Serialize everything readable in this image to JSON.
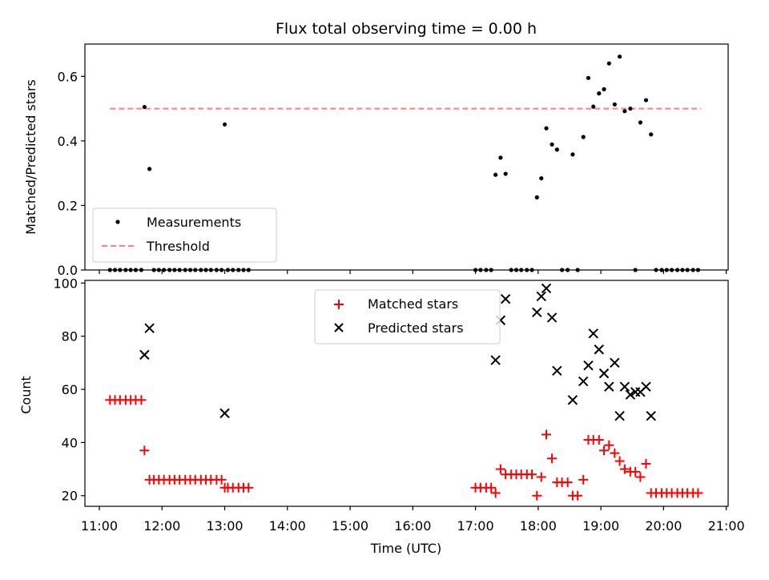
{
  "chart_data": [
    {
      "type": "scatter",
      "title": "Flux total observing time = 0.00 h",
      "xlabel": "",
      "ylabel": "Matched/Predicted stars",
      "ylim": [
        0,
        0.7
      ],
      "yticks": [
        "0.0",
        "0.2",
        "0.4",
        "0.6"
      ],
      "legend": {
        "placement": "lower-left",
        "entries": [
          "Measurements",
          "Threshold"
        ]
      },
      "colors": {
        "measurements": "#000000",
        "threshold": "#ff7f7f"
      },
      "threshold": {
        "x": [
          11.17,
          20.6
        ],
        "y": 0.5
      },
      "series": [
        {
          "name": "Measurements",
          "x": [
            11.17,
            11.25,
            11.33,
            11.42,
            11.5,
            11.58,
            11.67,
            11.72,
            11.8,
            11.87,
            11.95,
            12.03,
            12.12,
            12.2,
            12.28,
            12.37,
            12.45,
            12.53,
            12.62,
            12.7,
            12.78,
            12.87,
            12.95,
            13.0,
            13.05,
            13.13,
            13.22,
            13.3,
            13.38,
            17.0,
            17.08,
            17.17,
            17.25,
            17.32,
            17.4,
            17.48,
            17.57,
            17.65,
            17.73,
            17.82,
            17.9,
            17.98,
            18.05,
            18.13,
            18.22,
            18.3,
            18.38,
            18.47,
            18.55,
            18.63,
            18.72,
            18.8,
            18.88,
            18.97,
            19.05,
            19.13,
            19.22,
            19.3,
            19.38,
            19.47,
            19.55,
            19.63,
            19.72,
            19.8,
            19.88,
            19.97,
            20.05,
            20.13,
            20.22,
            20.3,
            20.38,
            20.47,
            20.55
          ],
          "y": [
            0,
            0,
            0,
            0,
            0,
            0,
            0,
            0.505,
            0.313,
            0,
            0,
            0,
            0,
            0,
            0,
            0,
            0,
            0,
            0,
            0,
            0,
            0,
            0,
            0.451,
            0,
            0,
            0,
            0,
            0,
            0,
            0,
            0,
            0,
            0.295,
            0.348,
            0.298,
            0,
            0,
            0,
            0,
            0,
            0.225,
            0.284,
            0.439,
            0.389,
            0.373,
            0,
            0,
            0.358,
            0,
            0.412,
            0.595,
            0.506,
            0.547,
            0.56,
            0.64,
            0.513,
            0.661,
            0.492,
            0.5,
            0,
            0.457,
            0.526,
            0.42,
            0,
            0,
            0,
            0,
            0,
            0,
            0,
            0,
            0
          ]
        }
      ]
    },
    {
      "type": "scatter",
      "title": "",
      "xlabel": "Time (UTC)",
      "ylabel": "Count",
      "ylim": [
        16,
        101
      ],
      "yticks": [
        "20",
        "40",
        "60",
        "80",
        "100"
      ],
      "xlim": [
        10.77,
        21.03
      ],
      "xticks": [
        "11:00",
        "12:00",
        "13:00",
        "14:00",
        "15:00",
        "16:00",
        "17:00",
        "18:00",
        "19:00",
        "20:00",
        "21:00"
      ],
      "legend": {
        "placement": "upper-center",
        "entries": [
          "Matched stars",
          "Predicted stars"
        ]
      },
      "colors": {
        "matched": "#ff0000",
        "predicted": "#000000"
      },
      "series": [
        {
          "name": "Matched stars",
          "x": [
            11.17,
            11.25,
            11.33,
            11.42,
            11.5,
            11.58,
            11.67,
            11.72,
            11.8,
            11.87,
            11.95,
            12.03,
            12.12,
            12.2,
            12.28,
            12.37,
            12.45,
            12.53,
            12.62,
            12.7,
            12.78,
            12.87,
            12.95,
            13.0,
            13.05,
            13.13,
            13.22,
            13.3,
            13.38,
            17.0,
            17.08,
            17.17,
            17.25,
            17.32,
            17.4,
            17.48,
            17.57,
            17.65,
            17.73,
            17.82,
            17.9,
            17.98,
            18.05,
            18.13,
            18.22,
            18.3,
            18.38,
            18.47,
            18.55,
            18.63,
            18.72,
            18.8,
            18.88,
            18.97,
            19.05,
            19.13,
            19.22,
            19.3,
            19.38,
            19.47,
            19.55,
            19.63,
            19.72,
            19.8,
            19.88,
            19.97,
            20.05,
            20.13,
            20.22,
            20.3,
            20.38,
            20.47,
            20.55
          ],
          "y": [
            56,
            56,
            56,
            56,
            56,
            56,
            56,
            37,
            26,
            26,
            26,
            26,
            26,
            26,
            26,
            26,
            26,
            26,
            26,
            26,
            26,
            26,
            26,
            23,
            23,
            23,
            23,
            23,
            23,
            23,
            23,
            23,
            23,
            21,
            30,
            28,
            28,
            28,
            28,
            28,
            28,
            20,
            27,
            43,
            34,
            25,
            25,
            25,
            20,
            20,
            26,
            41,
            41,
            41,
            37,
            39,
            36,
            33,
            30,
            29,
            29,
            27,
            32,
            21,
            21,
            21,
            21,
            21,
            21,
            21,
            21,
            21,
            21
          ]
        },
        {
          "name": "Predicted stars",
          "x": [
            11.72,
            11.8,
            13.0,
            17.32,
            17.4,
            17.48,
            17.98,
            18.05,
            18.13,
            18.22,
            18.3,
            18.55,
            18.72,
            18.8,
            18.88,
            18.97,
            19.05,
            19.13,
            19.22,
            19.3,
            19.38,
            19.47,
            19.55,
            19.63,
            19.72,
            19.8
          ],
          "y": [
            73,
            83,
            51,
            71,
            86,
            94,
            89,
            95,
            98,
            87,
            67,
            56,
            63,
            69,
            81,
            75,
            66,
            61,
            70,
            50,
            61,
            58,
            59,
            59,
            61,
            50
          ]
        }
      ]
    }
  ]
}
